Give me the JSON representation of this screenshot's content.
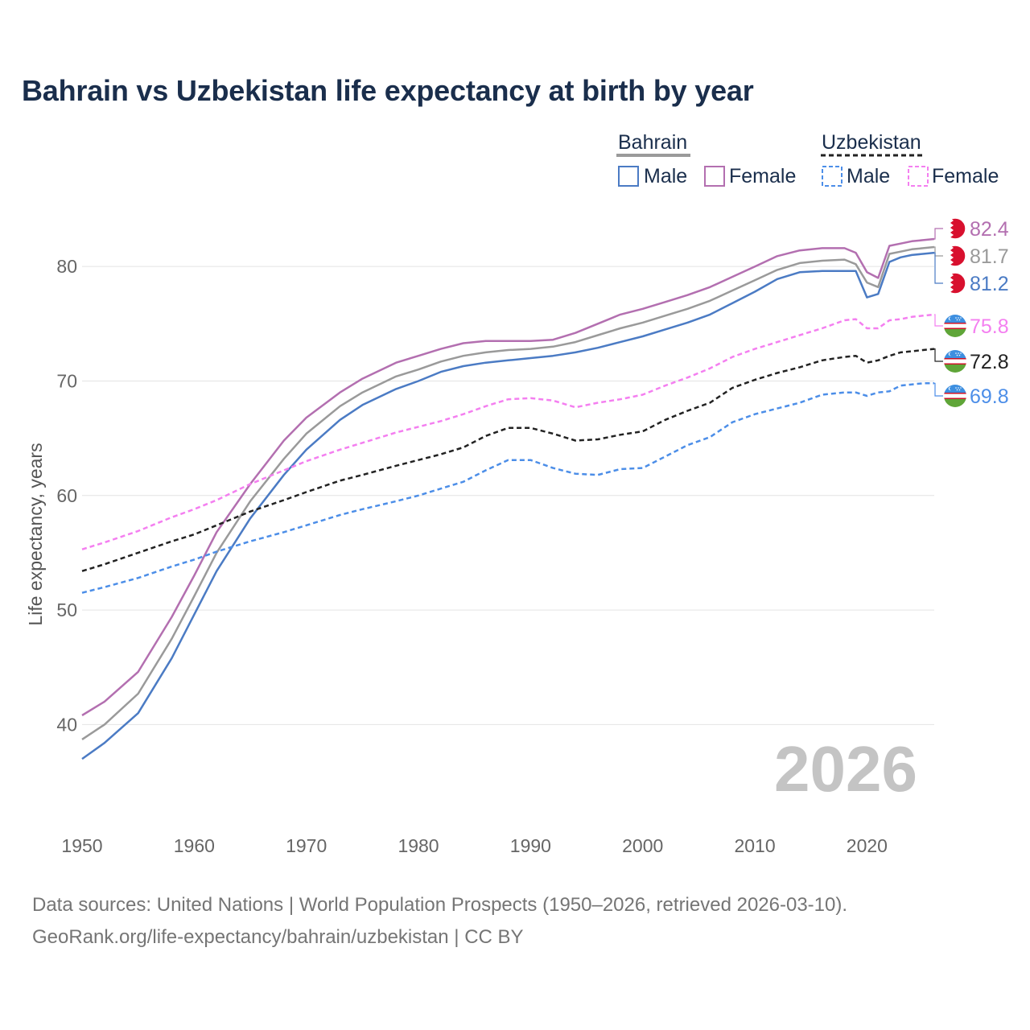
{
  "chart_data": {
    "type": "line",
    "title": "Bahrain vs Uzbekistan life expectancy at birth by year",
    "ylabel": "Life expectancy, years",
    "xlabel": "",
    "xlim": [
      1950,
      2026
    ],
    "ylim": [
      33,
      85
    ],
    "yticks": [
      40,
      50,
      60,
      70,
      80
    ],
    "xticks": [
      1950,
      1960,
      1970,
      1980,
      1990,
      2000,
      2010,
      2020
    ],
    "year_mark": "2026",
    "legend": {
      "groups": [
        {
          "country": "Bahrain",
          "entries": [
            "Male",
            "Female"
          ]
        },
        {
          "country": "Uzbekistan",
          "entries": [
            "Male",
            "Female"
          ]
        }
      ]
    },
    "series": [
      {
        "name": "Bahrain Female",
        "country": "Bahrain",
        "sex": "Female",
        "color": "#b36fb0",
        "dashed": false,
        "end_label": "82.4",
        "points": [
          [
            1950,
            40.8
          ],
          [
            1952,
            42.0
          ],
          [
            1955,
            44.6
          ],
          [
            1958,
            49.4
          ],
          [
            1960,
            53.0
          ],
          [
            1962,
            56.8
          ],
          [
            1965,
            61.0
          ],
          [
            1968,
            64.8
          ],
          [
            1970,
            66.8
          ],
          [
            1973,
            69.0
          ],
          [
            1975,
            70.2
          ],
          [
            1978,
            71.6
          ],
          [
            1980,
            72.2
          ],
          [
            1982,
            72.8
          ],
          [
            1984,
            73.3
          ],
          [
            1986,
            73.5
          ],
          [
            1988,
            73.5
          ],
          [
            1990,
            73.5
          ],
          [
            1992,
            73.6
          ],
          [
            1994,
            74.2
          ],
          [
            1996,
            75.0
          ],
          [
            1998,
            75.8
          ],
          [
            2000,
            76.3
          ],
          [
            2002,
            76.9
          ],
          [
            2004,
            77.5
          ],
          [
            2006,
            78.2
          ],
          [
            2008,
            79.1
          ],
          [
            2010,
            80.0
          ],
          [
            2012,
            80.9
          ],
          [
            2014,
            81.4
          ],
          [
            2016,
            81.6
          ],
          [
            2018,
            81.6
          ],
          [
            2019,
            81.2
          ],
          [
            2020,
            79.5
          ],
          [
            2021,
            79.0
          ],
          [
            2022,
            81.8
          ],
          [
            2023,
            82.0
          ],
          [
            2024,
            82.2
          ],
          [
            2025,
            82.3
          ],
          [
            2026,
            82.4
          ]
        ]
      },
      {
        "name": "Bahrain Total",
        "country": "Bahrain",
        "sex": "Total",
        "color": "#9a9a9a",
        "dashed": false,
        "end_label": "81.7",
        "points": [
          [
            1950,
            38.7
          ],
          [
            1952,
            40.0
          ],
          [
            1955,
            42.7
          ],
          [
            1958,
            47.5
          ],
          [
            1960,
            51.2
          ],
          [
            1962,
            55.0
          ],
          [
            1965,
            59.5
          ],
          [
            1968,
            63.2
          ],
          [
            1970,
            65.4
          ],
          [
            1973,
            67.8
          ],
          [
            1975,
            69.0
          ],
          [
            1978,
            70.4
          ],
          [
            1980,
            71.0
          ],
          [
            1982,
            71.7
          ],
          [
            1984,
            72.2
          ],
          [
            1986,
            72.5
          ],
          [
            1988,
            72.7
          ],
          [
            1990,
            72.8
          ],
          [
            1992,
            73.0
          ],
          [
            1994,
            73.4
          ],
          [
            1996,
            74.0
          ],
          [
            1998,
            74.6
          ],
          [
            2000,
            75.1
          ],
          [
            2002,
            75.7
          ],
          [
            2004,
            76.3
          ],
          [
            2006,
            77.0
          ],
          [
            2008,
            77.9
          ],
          [
            2010,
            78.8
          ],
          [
            2012,
            79.7
          ],
          [
            2014,
            80.3
          ],
          [
            2016,
            80.5
          ],
          [
            2018,
            80.6
          ],
          [
            2019,
            80.2
          ],
          [
            2020,
            78.6
          ],
          [
            2021,
            78.2
          ],
          [
            2022,
            81.1
          ],
          [
            2023,
            81.3
          ],
          [
            2024,
            81.5
          ],
          [
            2025,
            81.6
          ],
          [
            2026,
            81.7
          ]
        ]
      },
      {
        "name": "Bahrain Male",
        "country": "Bahrain",
        "sex": "Male",
        "color": "#4b7bc4",
        "dashed": false,
        "end_label": "81.2",
        "points": [
          [
            1950,
            37.0
          ],
          [
            1952,
            38.4
          ],
          [
            1955,
            41.0
          ],
          [
            1958,
            45.8
          ],
          [
            1960,
            49.6
          ],
          [
            1962,
            53.4
          ],
          [
            1965,
            58.0
          ],
          [
            1968,
            61.8
          ],
          [
            1970,
            64.0
          ],
          [
            1973,
            66.6
          ],
          [
            1975,
            67.9
          ],
          [
            1978,
            69.3
          ],
          [
            1980,
            70.0
          ],
          [
            1982,
            70.8
          ],
          [
            1984,
            71.3
          ],
          [
            1986,
            71.6
          ],
          [
            1988,
            71.8
          ],
          [
            1990,
            72.0
          ],
          [
            1992,
            72.2
          ],
          [
            1994,
            72.5
          ],
          [
            1996,
            72.9
          ],
          [
            1998,
            73.4
          ],
          [
            2000,
            73.9
          ],
          [
            2002,
            74.5
          ],
          [
            2004,
            75.1
          ],
          [
            2006,
            75.8
          ],
          [
            2008,
            76.8
          ],
          [
            2010,
            77.8
          ],
          [
            2012,
            78.9
          ],
          [
            2014,
            79.5
          ],
          [
            2016,
            79.6
          ],
          [
            2018,
            79.6
          ],
          [
            2019,
            79.6
          ],
          [
            2020,
            77.3
          ],
          [
            2021,
            77.6
          ],
          [
            2022,
            80.4
          ],
          [
            2023,
            80.8
          ],
          [
            2024,
            81.0
          ],
          [
            2025,
            81.1
          ],
          [
            2026,
            81.2
          ]
        ]
      },
      {
        "name": "Uzbekistan Female",
        "country": "Uzbekistan",
        "sex": "Female",
        "color": "#f47ff0",
        "dashed": true,
        "end_label": "75.8",
        "points": [
          [
            1950,
            55.3
          ],
          [
            1952,
            55.9
          ],
          [
            1955,
            56.9
          ],
          [
            1958,
            58.1
          ],
          [
            1960,
            58.8
          ],
          [
            1962,
            59.6
          ],
          [
            1965,
            61.0
          ],
          [
            1968,
            62.2
          ],
          [
            1970,
            63.0
          ],
          [
            1973,
            64.0
          ],
          [
            1975,
            64.6
          ],
          [
            1978,
            65.5
          ],
          [
            1980,
            66.0
          ],
          [
            1982,
            66.5
          ],
          [
            1984,
            67.1
          ],
          [
            1986,
            67.8
          ],
          [
            1988,
            68.4
          ],
          [
            1990,
            68.5
          ],
          [
            1992,
            68.3
          ],
          [
            1994,
            67.7
          ],
          [
            1996,
            68.1
          ],
          [
            1998,
            68.4
          ],
          [
            2000,
            68.8
          ],
          [
            2002,
            69.6
          ],
          [
            2004,
            70.3
          ],
          [
            2006,
            71.1
          ],
          [
            2008,
            72.1
          ],
          [
            2010,
            72.8
          ],
          [
            2012,
            73.4
          ],
          [
            2014,
            74.0
          ],
          [
            2016,
            74.6
          ],
          [
            2018,
            75.3
          ],
          [
            2019,
            75.4
          ],
          [
            2020,
            74.6
          ],
          [
            2021,
            74.6
          ],
          [
            2022,
            75.3
          ],
          [
            2023,
            75.4
          ],
          [
            2024,
            75.6
          ],
          [
            2025,
            75.7
          ],
          [
            2026,
            75.8
          ]
        ]
      },
      {
        "name": "Uzbekistan Total",
        "country": "Uzbekistan",
        "sex": "Total",
        "color": "#222222",
        "dashed": true,
        "end_label": "72.8",
        "points": [
          [
            1950,
            53.4
          ],
          [
            1952,
            54.0
          ],
          [
            1955,
            55.0
          ],
          [
            1958,
            56.0
          ],
          [
            1960,
            56.6
          ],
          [
            1962,
            57.4
          ],
          [
            1965,
            58.6
          ],
          [
            1968,
            59.6
          ],
          [
            1970,
            60.3
          ],
          [
            1973,
            61.3
          ],
          [
            1975,
            61.8
          ],
          [
            1978,
            62.6
          ],
          [
            1980,
            63.1
          ],
          [
            1982,
            63.6
          ],
          [
            1984,
            64.2
          ],
          [
            1986,
            65.2
          ],
          [
            1988,
            65.9
          ],
          [
            1990,
            65.9
          ],
          [
            1992,
            65.4
          ],
          [
            1994,
            64.8
          ],
          [
            1996,
            64.9
          ],
          [
            1998,
            65.3
          ],
          [
            2000,
            65.6
          ],
          [
            2002,
            66.6
          ],
          [
            2004,
            67.4
          ],
          [
            2006,
            68.1
          ],
          [
            2008,
            69.4
          ],
          [
            2010,
            70.1
          ],
          [
            2012,
            70.7
          ],
          [
            2014,
            71.2
          ],
          [
            2016,
            71.8
          ],
          [
            2018,
            72.1
          ],
          [
            2019,
            72.2
          ],
          [
            2020,
            71.6
          ],
          [
            2021,
            71.8
          ],
          [
            2022,
            72.2
          ],
          [
            2023,
            72.5
          ],
          [
            2024,
            72.6
          ],
          [
            2025,
            72.7
          ],
          [
            2026,
            72.8
          ]
        ]
      },
      {
        "name": "Uzbekistan Male",
        "country": "Uzbekistan",
        "sex": "Male",
        "color": "#4c8ee8",
        "dashed": true,
        "end_label": "69.8",
        "points": [
          [
            1950,
            51.5
          ],
          [
            1952,
            52.0
          ],
          [
            1955,
            52.8
          ],
          [
            1958,
            53.8
          ],
          [
            1960,
            54.4
          ],
          [
            1962,
            55.1
          ],
          [
            1965,
            56.0
          ],
          [
            1968,
            56.8
          ],
          [
            1970,
            57.4
          ],
          [
            1973,
            58.3
          ],
          [
            1975,
            58.8
          ],
          [
            1978,
            59.5
          ],
          [
            1980,
            60.0
          ],
          [
            1982,
            60.6
          ],
          [
            1984,
            61.2
          ],
          [
            1986,
            62.2
          ],
          [
            1988,
            63.1
          ],
          [
            1990,
            63.1
          ],
          [
            1992,
            62.4
          ],
          [
            1994,
            61.9
          ],
          [
            1996,
            61.8
          ],
          [
            1998,
            62.3
          ],
          [
            2000,
            62.4
          ],
          [
            2002,
            63.4
          ],
          [
            2004,
            64.4
          ],
          [
            2006,
            65.1
          ],
          [
            2008,
            66.4
          ],
          [
            2010,
            67.1
          ],
          [
            2012,
            67.6
          ],
          [
            2014,
            68.1
          ],
          [
            2016,
            68.8
          ],
          [
            2018,
            69.0
          ],
          [
            2019,
            69.0
          ],
          [
            2020,
            68.7
          ],
          [
            2021,
            69.0
          ],
          [
            2022,
            69.1
          ],
          [
            2023,
            69.6
          ],
          [
            2024,
            69.7
          ],
          [
            2025,
            69.8
          ],
          [
            2026,
            69.8
          ]
        ]
      }
    ]
  },
  "footer": {
    "line1": "Data sources: United Nations | World Population Prospects (1950–2026, retrieved 2026-03-10).",
    "line2": "GeoRank.org/life-expectancy/bahrain/uzbekistan | CC BY"
  }
}
